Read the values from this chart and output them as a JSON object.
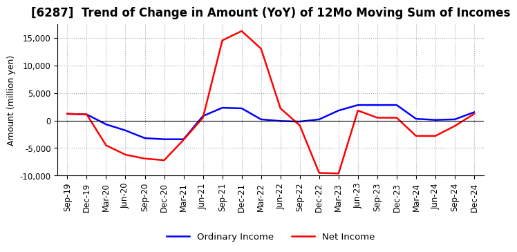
{
  "title": "[6287]  Trend of Change in Amount (YoY) of 12Mo Moving Sum of Incomes",
  "ylabel": "Amount (million yen)",
  "x_labels": [
    "Sep-19",
    "Dec-19",
    "Mar-20",
    "Jun-20",
    "Sep-20",
    "Dec-20",
    "Mar-21",
    "Jun-21",
    "Sep-21",
    "Dec-21",
    "Mar-22",
    "Jun-22",
    "Sep-22",
    "Dec-22",
    "Mar-23",
    "Jun-23",
    "Sep-23",
    "Dec-23",
    "Mar-24",
    "Jun-24",
    "Sep-24",
    "Dec-24"
  ],
  "ordinary_income": [
    1200,
    1100,
    -700,
    -1800,
    -3200,
    -3400,
    -3400,
    800,
    2300,
    2200,
    200,
    -100,
    -200,
    200,
    1800,
    2800,
    2800,
    2800,
    300,
    100,
    200,
    1500
  ],
  "net_income": [
    1200,
    1100,
    -4500,
    -6200,
    -6900,
    -7200,
    -3500,
    500,
    14500,
    16200,
    13000,
    2200,
    -900,
    -9500,
    -9600,
    1800,
    500,
    500,
    -2800,
    -2800,
    -1000,
    1200
  ],
  "ordinary_color": "#0000ff",
  "net_color": "#ff0000",
  "ylim": [
    -10000,
    17500
  ],
  "yticks": [
    -10000,
    -5000,
    0,
    5000,
    10000,
    15000
  ],
  "grid_color": "#aaaaaa",
  "background_color": "#ffffff",
  "title_fontsize": 12,
  "axis_fontsize": 9,
  "tick_fontsize": 8.5
}
